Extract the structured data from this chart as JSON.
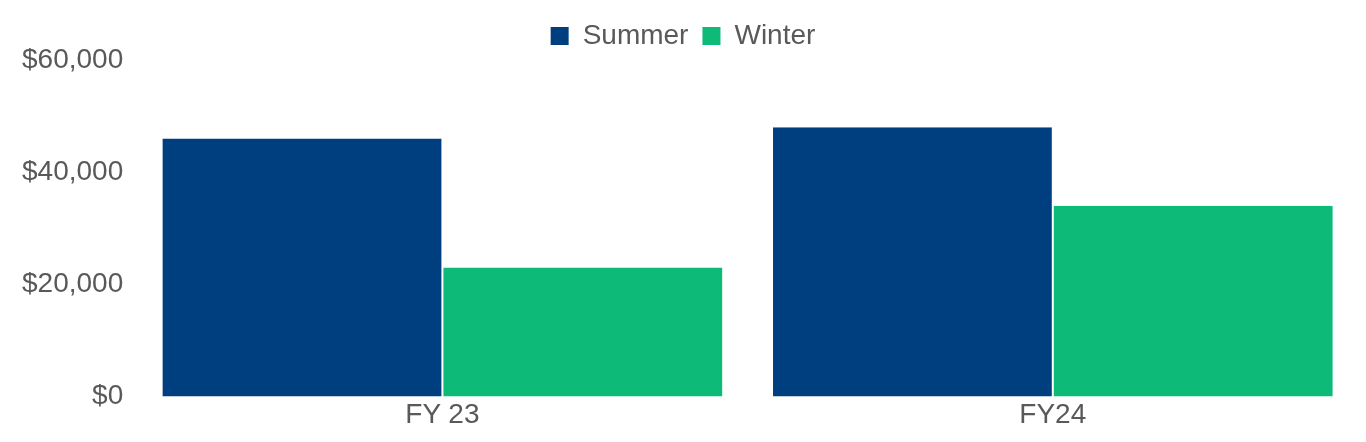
{
  "chart_data": {
    "type": "bar",
    "categories": [
      "FY 23",
      "FY24"
    ],
    "series": [
      {
        "name": "Summer",
        "color": "#003f7f",
        "values": [
          46000,
          48000
        ]
      },
      {
        "name": "Winter",
        "color": "#0dba78",
        "values": [
          23000,
          34000
        ]
      }
    ],
    "ylim": [
      0,
      60000
    ],
    "yticks": [
      {
        "value": 0,
        "label": "$0"
      },
      {
        "value": 20000,
        "label": "$20,000"
      },
      {
        "value": 40000,
        "label": "$40,000"
      },
      {
        "value": 60000,
        "label": "$60,000"
      }
    ],
    "grid": false,
    "legend": "top"
  }
}
